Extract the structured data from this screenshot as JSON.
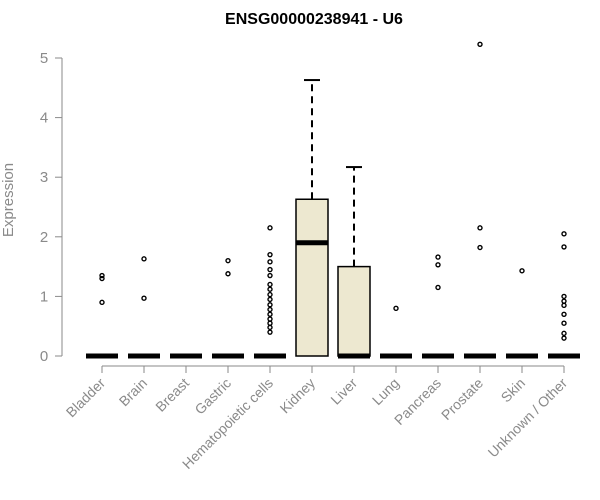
{
  "chart_data": {
    "type": "box",
    "title": "ENSG00000238941 - U6",
    "xlabel": "",
    "ylabel": "Expression",
    "ylim": [
      0,
      5.3
    ],
    "yticks": [
      "0",
      "1",
      "2",
      "3",
      "4",
      "5"
    ],
    "grid": false,
    "box_fill": "#ede8d0",
    "categories": [
      "Bladder",
      "Brain",
      "Breast",
      "Gastric",
      "Hematopoietic cells",
      "Kidney",
      "Liver",
      "Lung",
      "Pancreas",
      "Prostate",
      "Skin",
      "Unknown / Other"
    ],
    "boxes": [
      {
        "median": 0,
        "q1": 0,
        "q3": 0,
        "whisker_low": 0,
        "whisker_high": 0,
        "outliers": [
          0.9,
          1.3,
          1.35
        ]
      },
      {
        "median": 0,
        "q1": 0,
        "q3": 0,
        "whisker_low": 0,
        "whisker_high": 0,
        "outliers": [
          0.97,
          1.63
        ]
      },
      {
        "median": 0,
        "q1": 0,
        "q3": 0,
        "whisker_low": 0,
        "whisker_high": 0,
        "outliers": []
      },
      {
        "median": 0,
        "q1": 0,
        "q3": 0,
        "whisker_low": 0,
        "whisker_high": 0,
        "outliers": [
          1.38,
          1.6
        ]
      },
      {
        "median": 0,
        "q1": 0,
        "q3": 0,
        "whisker_low": 0,
        "whisker_high": 0,
        "outliers": [
          0.4,
          0.48,
          0.55,
          0.62,
          0.7,
          0.78,
          0.86,
          0.95,
          1.03,
          1.12,
          1.2,
          1.35,
          1.45,
          1.58,
          1.7,
          2.15
        ]
      },
      {
        "median": 1.9,
        "q1": 0,
        "q3": 2.63,
        "whisker_low": 0,
        "whisker_high": 4.63,
        "outliers": []
      },
      {
        "median": 0,
        "q1": 0,
        "q3": 1.5,
        "whisker_low": 0,
        "whisker_high": 3.17,
        "outliers": []
      },
      {
        "median": 0,
        "q1": 0,
        "q3": 0,
        "whisker_low": 0,
        "whisker_high": 0,
        "outliers": [
          0.8
        ]
      },
      {
        "median": 0,
        "q1": 0,
        "q3": 0,
        "whisker_low": 0,
        "whisker_high": 0,
        "outliers": [
          1.15,
          1.53,
          1.66
        ]
      },
      {
        "median": 0,
        "q1": 0,
        "q3": 0,
        "whisker_low": 0,
        "whisker_high": 0,
        "outliers": [
          1.82,
          2.15,
          5.23
        ]
      },
      {
        "median": 0,
        "q1": 0,
        "q3": 0,
        "whisker_low": 0,
        "whisker_high": 0,
        "outliers": [
          1.43
        ]
      },
      {
        "median": 0,
        "q1": 0,
        "q3": 0,
        "whisker_low": 0,
        "whisker_high": 0,
        "outliers": [
          0.3,
          0.38,
          0.55,
          0.7,
          0.85,
          0.92,
          1.0,
          1.83,
          2.05
        ]
      }
    ]
  }
}
